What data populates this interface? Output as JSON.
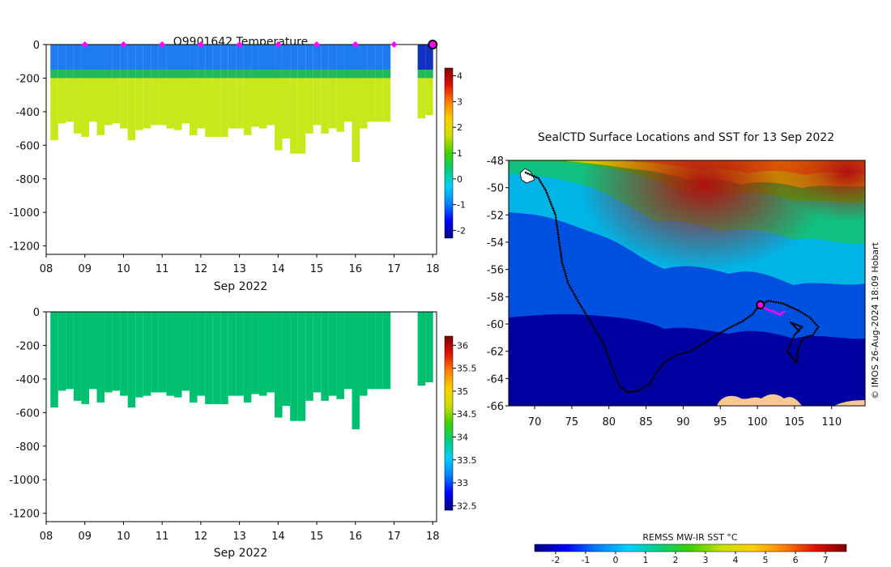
{
  "chart_data": [
    {
      "type": "heatmap",
      "title": "Q9901642  Temperature",
      "xlabel": "Sep 2022",
      "x_ticks": [
        "08",
        "09",
        "10",
        "11",
        "12",
        "13",
        "14",
        "15",
        "16",
        "17",
        "18"
      ],
      "xlim": [
        8,
        18.1
      ],
      "y_ticks": [
        0,
        -200,
        -400,
        -600,
        -800,
        -1000,
        -1200
      ],
      "ylim": [
        -1250,
        0
      ],
      "profile_days": [
        8.2,
        8.4,
        8.6,
        8.8,
        9.0,
        9.2,
        9.4,
        9.6,
        9.8,
        10.0,
        10.2,
        10.4,
        10.6,
        10.8,
        11.0,
        11.2,
        11.4,
        11.6,
        11.8,
        12.0,
        12.2,
        12.4,
        12.6,
        12.8,
        13.0,
        13.2,
        13.4,
        13.6,
        13.8,
        14.0,
        14.2,
        14.4,
        14.6,
        14.8,
        15.0,
        15.2,
        15.4,
        15.6,
        15.8,
        16.0,
        16.2,
        16.4,
        16.6,
        16.8,
        17.7,
        17.9
      ],
      "profile_max_depth_m": [
        -570,
        -470,
        -460,
        -530,
        -550,
        -460,
        -540,
        -480,
        -470,
        -500,
        -570,
        -510,
        -500,
        -480,
        -480,
        -500,
        -510,
        -470,
        -540,
        -500,
        -550,
        -550,
        -550,
        -500,
        -500,
        -540,
        -490,
        -500,
        -480,
        -630,
        -560,
        -650,
        -650,
        -530,
        -480,
        -530,
        -500,
        -520,
        -460,
        -700,
        -500,
        -460,
        -460,
        -460,
        -440,
        -420
      ],
      "surface_markers_day": [
        9,
        10,
        11,
        12,
        13,
        14,
        15,
        16,
        17
      ],
      "current_position_day": 18,
      "colorbar": {
        "ticks": [
          4,
          3,
          2,
          1,
          0,
          -1,
          -2
        ],
        "range": [
          -2.3,
          4.3
        ]
      }
    },
    {
      "type": "heatmap",
      "title": "",
      "xlabel": "Sep 2022",
      "x_ticks": [
        "08",
        "09",
        "10",
        "11",
        "12",
        "13",
        "14",
        "15",
        "16",
        "17",
        "18"
      ],
      "xlim": [
        8,
        18.1
      ],
      "y_ticks": [
        0,
        -200,
        -400,
        -600,
        -800,
        -1000,
        -1200
      ],
      "ylim": [
        -1250,
        0
      ],
      "colorbar": {
        "ticks": [
          36,
          35.5,
          35,
          34.5,
          34,
          33.5,
          33,
          32.5
        ],
        "range": [
          32.4,
          36.2
        ]
      }
    },
    {
      "type": "heatmap",
      "title": "SealCTD Surface Locations and SST for 13 Sep 2022",
      "x_ticks": [
        70,
        75,
        80,
        85,
        90,
        95,
        100,
        105,
        110
      ],
      "xlim": [
        66.5,
        114.5
      ],
      "y_ticks": [
        -48,
        -50,
        -52,
        -54,
        -56,
        -58,
        -60,
        -62,
        -64,
        -66
      ],
      "ylim": [
        -66,
        -48
      ],
      "track_lonlat": [
        [
          68.8,
          -48.9
        ],
        [
          70.5,
          -49.3
        ],
        [
          71.5,
          -50.2
        ],
        [
          72.8,
          -52.0
        ],
        [
          73.3,
          -54.0
        ],
        [
          73.7,
          -55.5
        ],
        [
          74.5,
          -57.0
        ],
        [
          75.8,
          -58.3
        ],
        [
          77.5,
          -59.8
        ],
        [
          79.3,
          -61.5
        ],
        [
          80.5,
          -63.3
        ],
        [
          81.5,
          -64.6
        ],
        [
          82.5,
          -65.0
        ],
        [
          84.0,
          -64.9
        ],
        [
          85.5,
          -64.4
        ],
        [
          86.5,
          -63.5
        ],
        [
          87.5,
          -62.8
        ],
        [
          89.0,
          -62.3
        ],
        [
          91.0,
          -62.0
        ],
        [
          92.5,
          -61.5
        ],
        [
          94.5,
          -60.8
        ],
        [
          96.5,
          -60.2
        ],
        [
          98.0,
          -59.8
        ],
        [
          99.3,
          -59.3
        ],
        [
          100.3,
          -58.6
        ],
        [
          101.5,
          -58.3
        ],
        [
          103.5,
          -58.5
        ],
        [
          105.5,
          -59.0
        ],
        [
          107.0,
          -59.5
        ],
        [
          108.2,
          -60.2
        ],
        [
          107.5,
          -60.8
        ],
        [
          106.2,
          -61.0
        ],
        [
          105.5,
          -61.8
        ],
        [
          105.2,
          -62.8
        ],
        [
          104.0,
          -62.0
        ],
        [
          105.0,
          -60.8
        ],
        [
          106.0,
          -60.2
        ],
        [
          104.5,
          -59.9
        ],
        [
          105.8,
          -60.6
        ]
      ],
      "recent_track_lonlat": [
        [
          100.4,
          -58.6
        ],
        [
          101.2,
          -58.9
        ],
        [
          102.2,
          -59.1
        ],
        [
          103.0,
          -59.3
        ],
        [
          103.6,
          -59.1
        ]
      ],
      "current_position": [
        100.4,
        -58.6
      ],
      "colorbar": {
        "label": "REMSS MW-IR SST °C",
        "ticks": [
          -2,
          -1,
          0,
          1,
          2,
          3,
          4,
          5,
          6,
          7
        ],
        "range": [
          -2.7,
          7.7
        ]
      },
      "credit": "© IMOS 26-Aug-2024 18:09 Hobart"
    }
  ]
}
